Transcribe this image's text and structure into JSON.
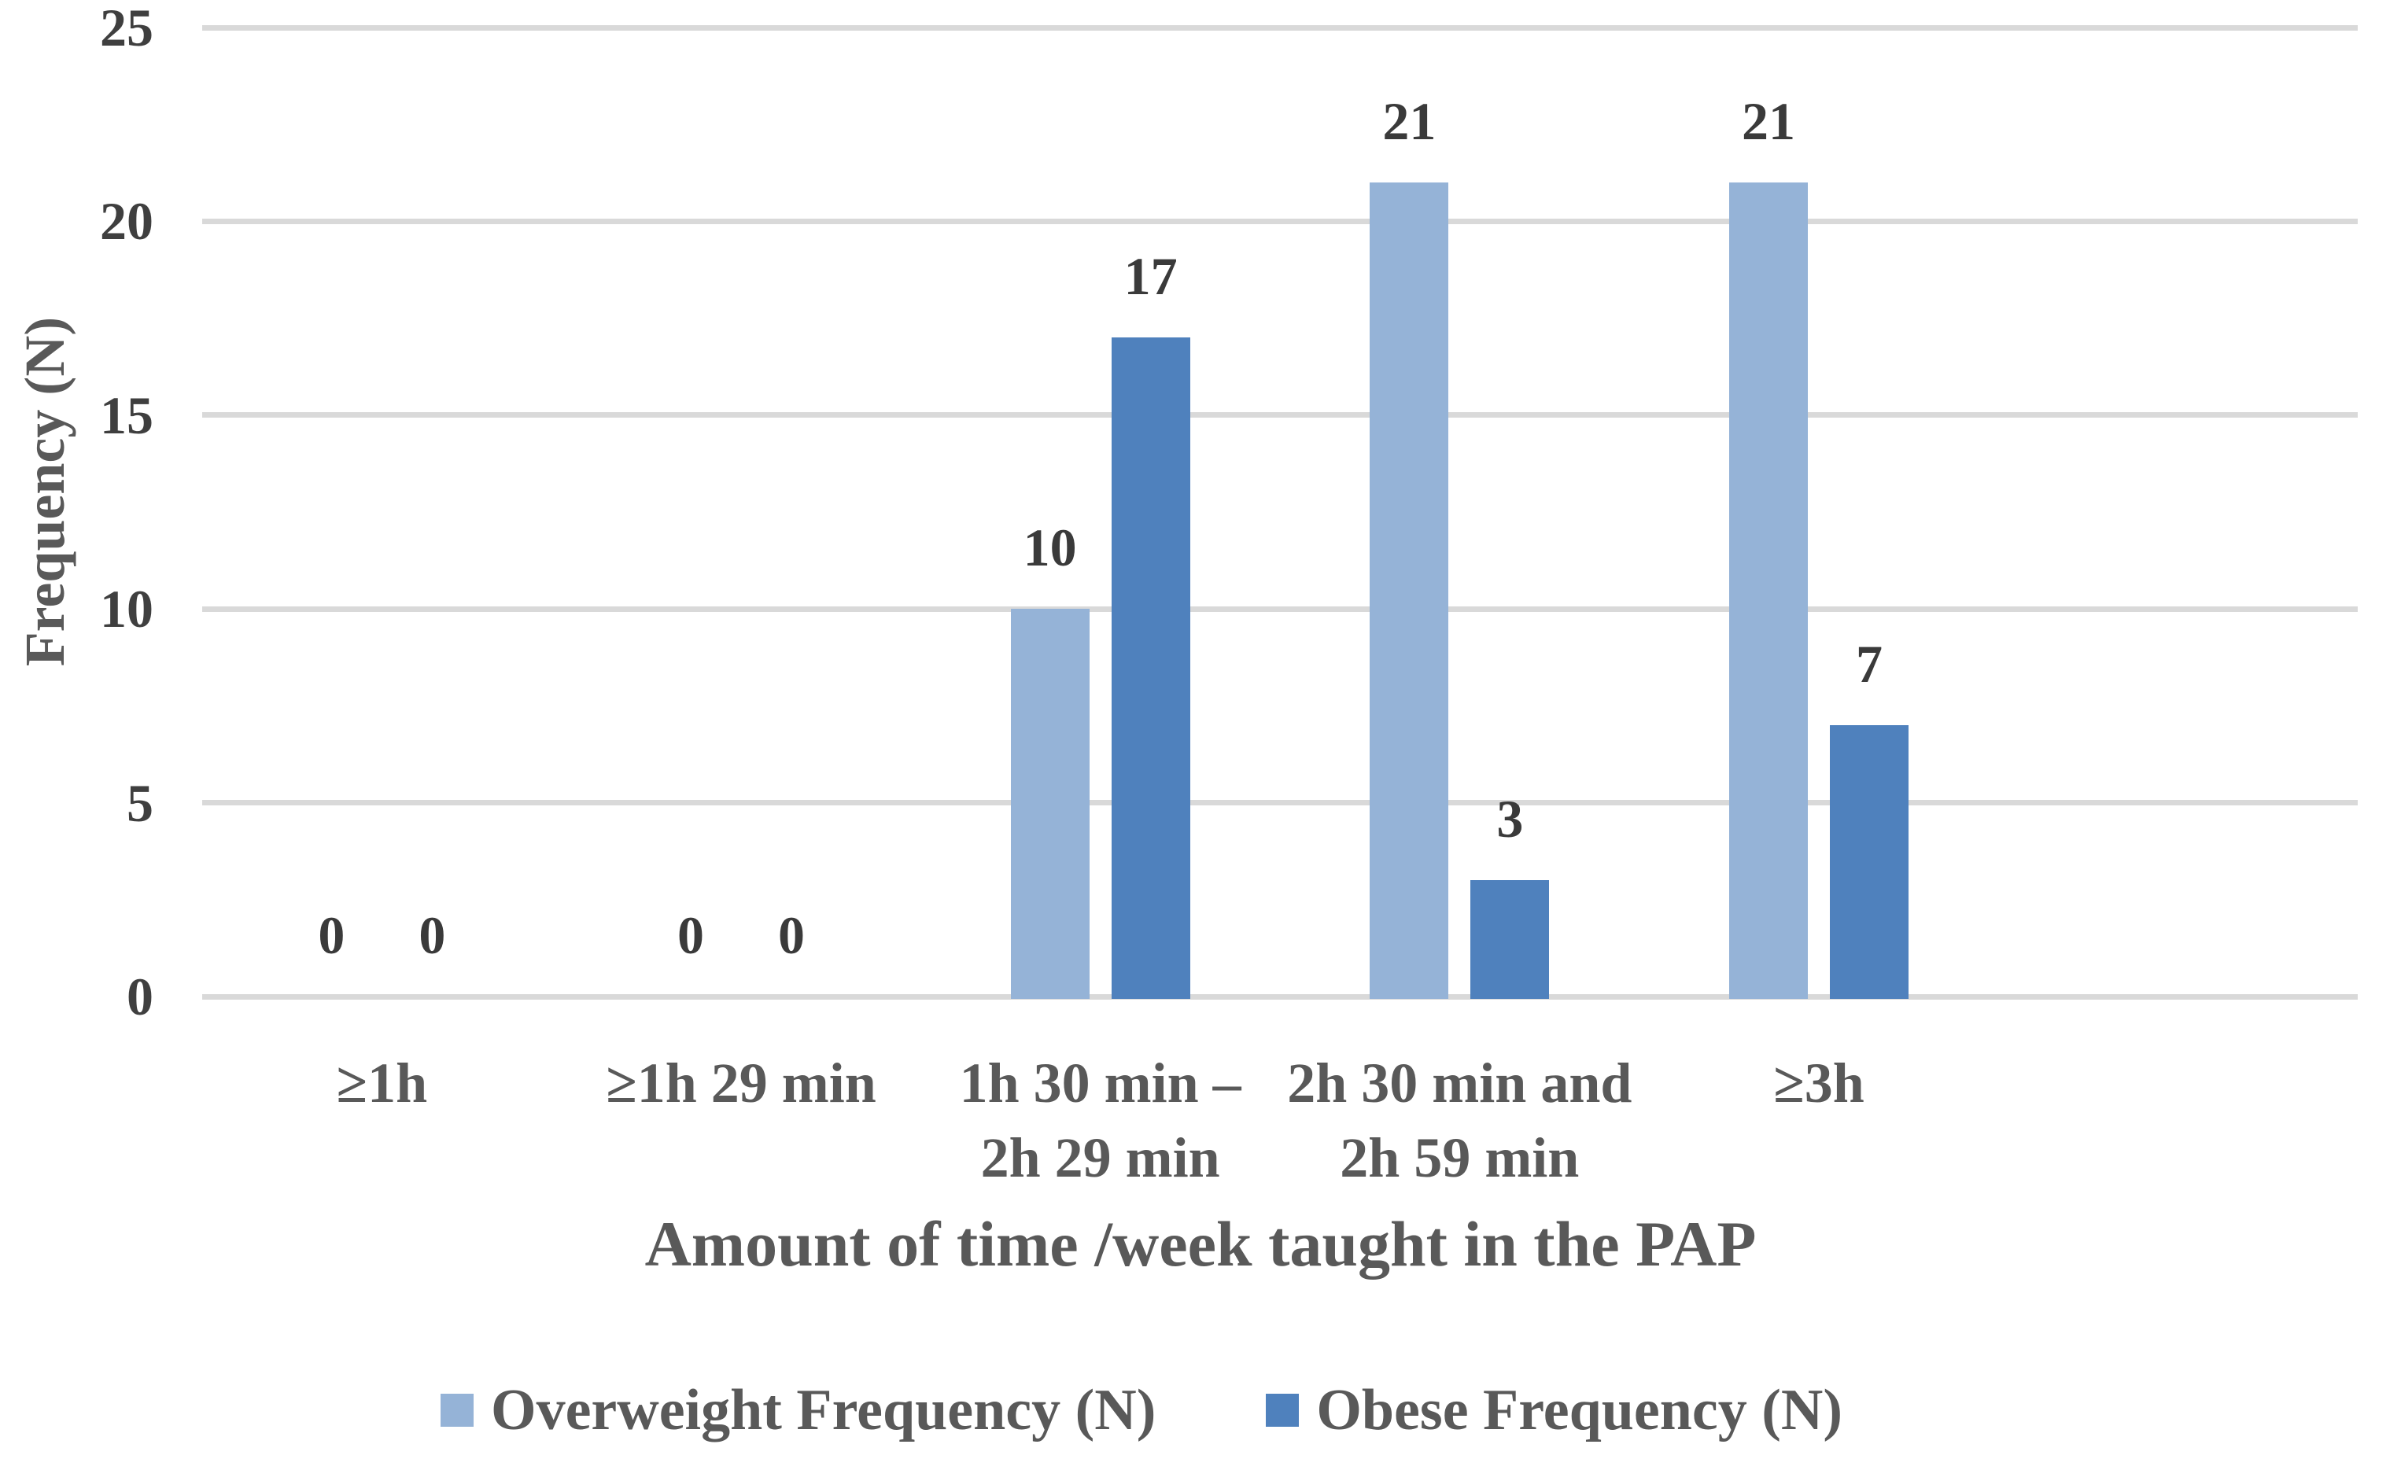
{
  "chart_data": {
    "type": "bar",
    "title": "",
    "categories": [
      [
        "≥1h"
      ],
      [
        "≥1h 29 min"
      ],
      [
        "1h 30 min –",
        "2h 29 min"
      ],
      [
        "2h 30 min and",
        "2h 59 min"
      ],
      [
        "≥3h"
      ]
    ],
    "series": [
      {
        "name": "Overweight Frequency (N)",
        "color": "#95B3D7",
        "values": [
          0,
          0,
          10,
          21,
          21
        ]
      },
      {
        "name": "Obese Frequency (N)",
        "color": "#4F81BD",
        "values": [
          0,
          0,
          17,
          3,
          7
        ]
      }
    ],
    "xlabel": "Amount of time /week taught in the PAP",
    "ylabel": "Frequency (N)",
    "ylim": [
      0,
      25
    ],
    "yticks": [
      "0",
      "5",
      "10",
      "15",
      "20",
      "25"
    ],
    "grid": true,
    "data_labels_shown": true,
    "legend_position": "bottom",
    "empty_trailing_slots": 1,
    "colors": {
      "background": "#FFFFFF",
      "gridline": "#D9D9D9",
      "tick_text": "#3F3F3F",
      "data_label_text": "#3A3A3A",
      "axis_text": "#595959"
    }
  }
}
